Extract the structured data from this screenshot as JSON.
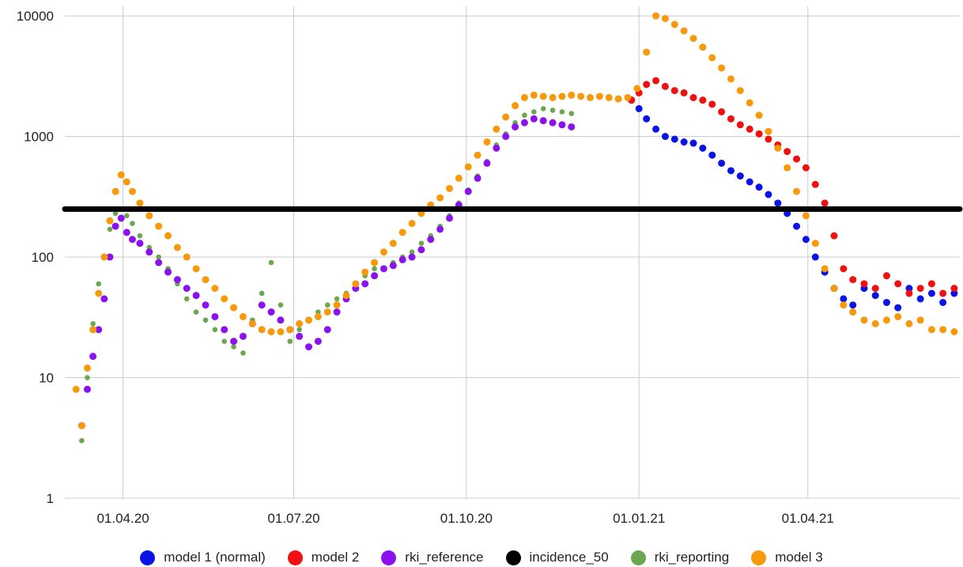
{
  "chart_data": {
    "type": "scatter",
    "y_scale": "log",
    "ylim": [
      1,
      12000
    ],
    "y_ticks": [
      "1",
      "10",
      "100",
      "1000",
      "10000"
    ],
    "x_tick_labels": [
      "01.04.20",
      "01.07.20",
      "01.10.20",
      "01.01.21",
      "01.04.21"
    ],
    "x_tick_dates": [
      "2020-04-01",
      "2020-07-01",
      "2020-10-01",
      "2021-01-01",
      "2021-04-01"
    ],
    "xlim": [
      "2020-03-01",
      "2021-06-21"
    ],
    "grid": true,
    "legend_position": "bottom",
    "series": [
      {
        "name": "model 1 (normal)",
        "color": "#0a14e6",
        "x": [
          "2020-12-28",
          "2021-01-01",
          "2021-01-05",
          "2021-01-10",
          "2021-01-15",
          "2021-01-20",
          "2021-01-25",
          "2021-01-30",
          "2021-02-04",
          "2021-02-09",
          "2021-02-14",
          "2021-02-19",
          "2021-02-24",
          "2021-03-01",
          "2021-03-06",
          "2021-03-11",
          "2021-03-16",
          "2021-03-21",
          "2021-03-26",
          "2021-03-31",
          "2021-04-05",
          "2021-04-10",
          "2021-04-15",
          "2021-04-20",
          "2021-04-25",
          "2021-05-01",
          "2021-05-07",
          "2021-05-13",
          "2021-05-19",
          "2021-05-25",
          "2021-05-31",
          "2021-06-06",
          "2021-06-12",
          "2021-06-18"
        ],
        "y": [
          2000,
          1700,
          1400,
          1150,
          1000,
          950,
          900,
          880,
          800,
          700,
          600,
          520,
          470,
          420,
          380,
          330,
          280,
          230,
          180,
          140,
          100,
          75,
          55,
          45,
          40,
          55,
          48,
          42,
          38,
          55,
          45,
          50,
          42,
          50
        ]
      },
      {
        "name": "model 2",
        "color": "#f01010",
        "x": [
          "2020-12-28",
          "2021-01-01",
          "2021-01-05",
          "2021-01-10",
          "2021-01-15",
          "2021-01-20",
          "2021-01-25",
          "2021-01-30",
          "2021-02-04",
          "2021-02-09",
          "2021-02-14",
          "2021-02-19",
          "2021-02-24",
          "2021-03-01",
          "2021-03-06",
          "2021-03-11",
          "2021-03-16",
          "2021-03-21",
          "2021-03-26",
          "2021-03-31",
          "2021-04-05",
          "2021-04-10",
          "2021-04-15",
          "2021-04-20",
          "2021-04-25",
          "2021-05-01",
          "2021-05-07",
          "2021-05-13",
          "2021-05-19",
          "2021-05-25",
          "2021-05-31",
          "2021-06-06",
          "2021-06-12",
          "2021-06-18"
        ],
        "y": [
          2000,
          2300,
          2700,
          2900,
          2600,
          2400,
          2300,
          2100,
          2000,
          1850,
          1600,
          1400,
          1250,
          1150,
          1050,
          950,
          850,
          750,
          650,
          550,
          400,
          280,
          150,
          80,
          65,
          60,
          55,
          70,
          60,
          50,
          55,
          60,
          50,
          55
        ]
      },
      {
        "name": "rki_reference",
        "color": "#8b12ee",
        "x": [
          "2020-03-10",
          "2020-03-13",
          "2020-03-16",
          "2020-03-19",
          "2020-03-22",
          "2020-03-25",
          "2020-03-28",
          "2020-03-31",
          "2020-04-03",
          "2020-04-06",
          "2020-04-10",
          "2020-04-15",
          "2020-04-20",
          "2020-04-25",
          "2020-04-30",
          "2020-05-05",
          "2020-05-10",
          "2020-05-15",
          "2020-05-20",
          "2020-05-25",
          "2020-05-30",
          "2020-06-04",
          "2020-06-09",
          "2020-06-14",
          "2020-06-19",
          "2020-06-24",
          "2020-06-29",
          "2020-07-04",
          "2020-07-09",
          "2020-07-14",
          "2020-07-19",
          "2020-07-24",
          "2020-07-29",
          "2020-08-03",
          "2020-08-08",
          "2020-08-13",
          "2020-08-18",
          "2020-08-23",
          "2020-08-28",
          "2020-09-02",
          "2020-09-07",
          "2020-09-12",
          "2020-09-17",
          "2020-09-22",
          "2020-09-27",
          "2020-10-02",
          "2020-10-07",
          "2020-10-12",
          "2020-10-17",
          "2020-10-22",
          "2020-10-27",
          "2020-11-01",
          "2020-11-06",
          "2020-11-11",
          "2020-11-16",
          "2020-11-21",
          "2020-11-26"
        ],
        "y": [
          4,
          8,
          15,
          25,
          45,
          100,
          180,
          210,
          160,
          140,
          130,
          110,
          90,
          75,
          65,
          55,
          48,
          40,
          32,
          25,
          20,
          22,
          28,
          40,
          35,
          30,
          25,
          22,
          18,
          20,
          25,
          35,
          45,
          55,
          60,
          70,
          80,
          85,
          95,
          100,
          115,
          140,
          170,
          210,
          270,
          350,
          450,
          600,
          800,
          1000,
          1200,
          1300,
          1400,
          1350,
          1300,
          1250,
          1200
        ]
      },
      {
        "name": "rki_reporting",
        "color": "#6aa84f",
        "x": [
          "2020-03-10",
          "2020-03-13",
          "2020-03-16",
          "2020-03-19",
          "2020-03-22",
          "2020-03-25",
          "2020-03-28",
          "2020-03-31",
          "2020-04-03",
          "2020-04-06",
          "2020-04-10",
          "2020-04-15",
          "2020-04-20",
          "2020-04-25",
          "2020-04-30",
          "2020-05-05",
          "2020-05-10",
          "2020-05-15",
          "2020-05-20",
          "2020-05-25",
          "2020-05-30",
          "2020-06-04",
          "2020-06-09",
          "2020-06-14",
          "2020-06-19",
          "2020-06-24",
          "2020-06-29",
          "2020-07-04",
          "2020-07-09",
          "2020-07-14",
          "2020-07-19",
          "2020-07-24",
          "2020-07-29",
          "2020-08-03",
          "2020-08-08",
          "2020-08-13",
          "2020-08-18",
          "2020-08-23",
          "2020-08-28",
          "2020-09-02",
          "2020-09-07",
          "2020-09-12",
          "2020-09-17",
          "2020-09-22",
          "2020-09-27",
          "2020-10-02",
          "2020-10-07",
          "2020-10-12",
          "2020-10-17",
          "2020-10-22",
          "2020-10-27",
          "2020-11-01",
          "2020-11-06",
          "2020-11-11",
          "2020-11-16",
          "2020-11-21",
          "2020-11-26"
        ],
        "y": [
          3,
          10,
          28,
          60,
          100,
          170,
          230,
          250,
          220,
          190,
          150,
          120,
          100,
          80,
          60,
          45,
          35,
          30,
          25,
          20,
          18,
          16,
          30,
          50,
          90,
          40,
          20,
          25,
          30,
          35,
          40,
          45,
          50,
          60,
          70,
          80,
          80,
          90,
          100,
          110,
          130,
          150,
          180,
          220,
          280,
          360,
          470,
          620,
          850,
          1050,
          1300,
          1500,
          1600,
          1700,
          1650,
          1600,
          1550
        ]
      },
      {
        "name": "model 3",
        "color": "#f8990c",
        "x": [
          "2020-03-07",
          "2020-03-10",
          "2020-03-13",
          "2020-03-16",
          "2020-03-19",
          "2020-03-22",
          "2020-03-25",
          "2020-03-28",
          "2020-03-31",
          "2020-04-03",
          "2020-04-06",
          "2020-04-10",
          "2020-04-15",
          "2020-04-20",
          "2020-04-25",
          "2020-04-30",
          "2020-05-05",
          "2020-05-10",
          "2020-05-15",
          "2020-05-20",
          "2020-05-25",
          "2020-05-30",
          "2020-06-04",
          "2020-06-09",
          "2020-06-14",
          "2020-06-19",
          "2020-06-24",
          "2020-06-29",
          "2020-07-04",
          "2020-07-09",
          "2020-07-14",
          "2020-07-19",
          "2020-07-24",
          "2020-07-29",
          "2020-08-03",
          "2020-08-08",
          "2020-08-13",
          "2020-08-18",
          "2020-08-23",
          "2020-08-28",
          "2020-09-02",
          "2020-09-07",
          "2020-09-12",
          "2020-09-17",
          "2020-09-22",
          "2020-09-27",
          "2020-10-02",
          "2020-10-07",
          "2020-10-12",
          "2020-10-17",
          "2020-10-22",
          "2020-10-27",
          "2020-11-01",
          "2020-11-06",
          "2020-11-11",
          "2020-11-16",
          "2020-11-21",
          "2020-11-26",
          "2020-12-01",
          "2020-12-06",
          "2020-12-11",
          "2020-12-16",
          "2020-12-21",
          "2020-12-26",
          "2020-12-31",
          "2021-01-05",
          "2021-01-10",
          "2021-01-15",
          "2021-01-20",
          "2021-01-25",
          "2021-01-30",
          "2021-02-04",
          "2021-02-09",
          "2021-02-14",
          "2021-02-19",
          "2021-02-24",
          "2021-03-01",
          "2021-03-06",
          "2021-03-11",
          "2021-03-16",
          "2021-03-21",
          "2021-03-26",
          "2021-03-31",
          "2021-04-05",
          "2021-04-10",
          "2021-04-15",
          "2021-04-20",
          "2021-04-25",
          "2021-05-01",
          "2021-05-07",
          "2021-05-13",
          "2021-05-19",
          "2021-05-25",
          "2021-05-31",
          "2021-06-06",
          "2021-06-12",
          "2021-06-18"
        ],
        "y": [
          8,
          4,
          12,
          25,
          50,
          100,
          200,
          350,
          480,
          420,
          350,
          280,
          220,
          180,
          150,
          120,
          100,
          80,
          65,
          55,
          45,
          38,
          32,
          28,
          25,
          24,
          24,
          25,
          28,
          30,
          32,
          35,
          40,
          48,
          60,
          75,
          90,
          110,
          130,
          160,
          190,
          230,
          270,
          310,
          370,
          450,
          560,
          700,
          900,
          1150,
          1450,
          1800,
          2100,
          2200,
          2150,
          2100,
          2150,
          2200,
          2150,
          2100,
          2150,
          2100,
          2050,
          2100,
          2500,
          5000,
          10000,
          9500,
          8500,
          7500,
          6500,
          5500,
          4500,
          3700,
          3000,
          2400,
          1900,
          1500,
          1100,
          800,
          550,
          350,
          220,
          130,
          80,
          55,
          40,
          35,
          30,
          28,
          30,
          32,
          28,
          30,
          25,
          25,
          24
        ]
      },
      {
        "name": "incidence_50",
        "color": "#000000",
        "x": [
          "2020-03-01",
          "2021-06-21"
        ],
        "y": [
          250,
          250
        ]
      }
    ]
  },
  "legend": [
    {
      "label": "model 1 (normal)",
      "color": "#0a14e6"
    },
    {
      "label": "model 2",
      "color": "#f01010"
    },
    {
      "label": "rki_reference",
      "color": "#8b12ee"
    },
    {
      "label": "incidence_50",
      "color": "#000000"
    },
    {
      "label": "rki_reporting",
      "color": "#6aa84f"
    },
    {
      "label": "model 3",
      "color": "#f8990c"
    }
  ]
}
